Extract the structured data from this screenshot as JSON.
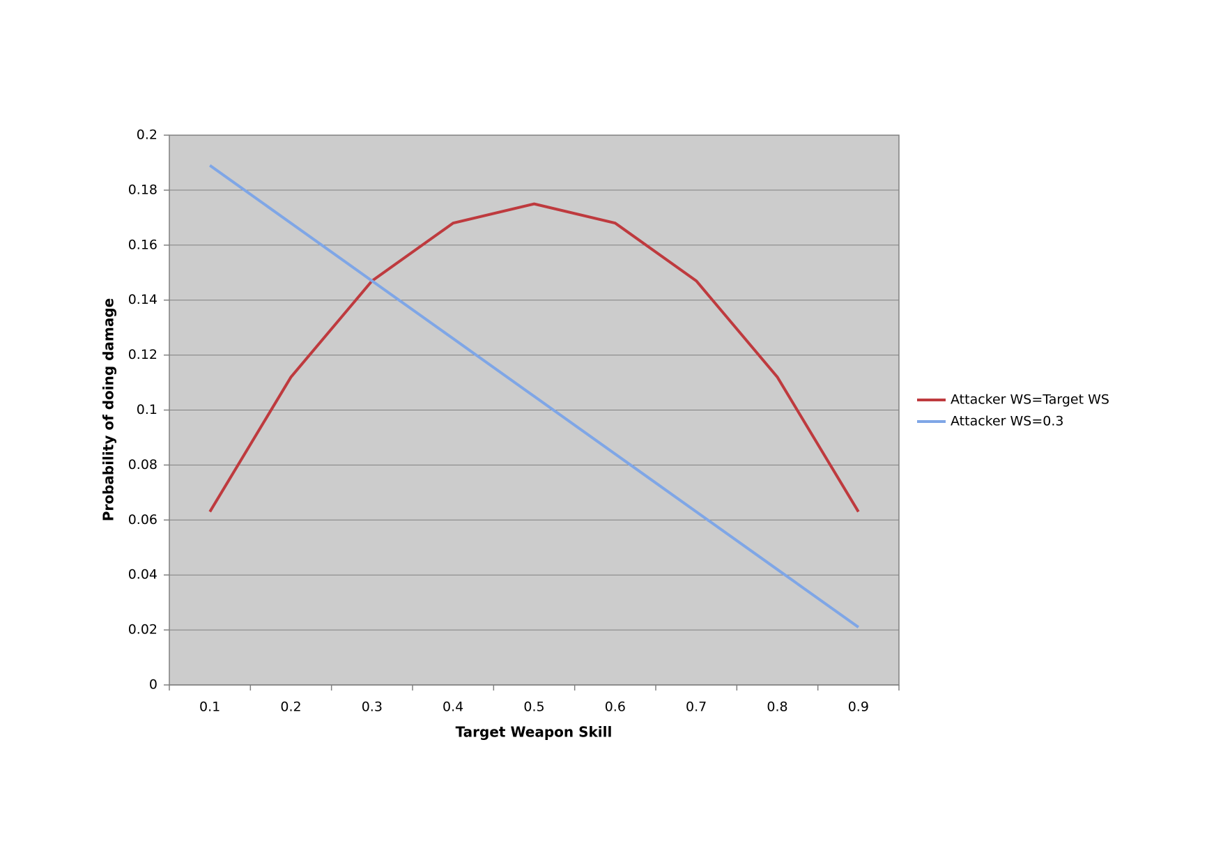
{
  "chart_data": {
    "type": "line",
    "xlabel": "Target Weapon Skill",
    "ylabel": "Probability of doing damage",
    "categories": [
      "0.1",
      "0.2",
      "0.3",
      "0.4",
      "0.5",
      "0.6",
      "0.7",
      "0.8",
      "0.9"
    ],
    "series": [
      {
        "name": "Attacker WS=Target WS",
        "color": "#be3a3e",
        "values": [
          0.063,
          0.112,
          0.147,
          0.168,
          0.175,
          0.168,
          0.147,
          0.112,
          0.063
        ]
      },
      {
        "name": "Attacker WS=0.3",
        "color": "#7fa6e6",
        "values": [
          0.189,
          0.168,
          0.147,
          0.126,
          0.105,
          0.084,
          0.063,
          0.042,
          0.021
        ]
      }
    ],
    "ylim": [
      0,
      0.2
    ],
    "yticks": [
      0,
      0.02,
      0.04,
      0.06,
      0.08,
      0.1,
      0.12,
      0.14,
      0.16,
      0.18,
      0.2
    ],
    "grid": true,
    "plot_background": "#cccccc",
    "legend": "right"
  }
}
